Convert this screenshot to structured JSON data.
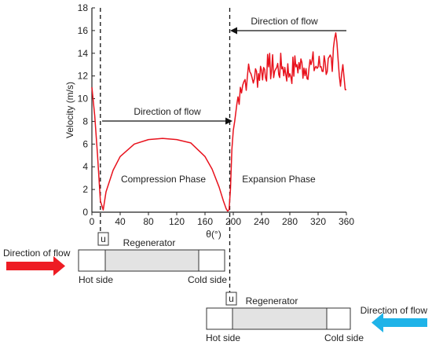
{
  "chart_data": {
    "type": "line",
    "xlabel": "θ(°)",
    "ylabel": "Velocity (m/s)",
    "xlim": [
      0,
      360
    ],
    "ylim": [
      0,
      18
    ],
    "xticks": [
      0,
      40,
      80,
      120,
      160,
      200,
      240,
      280,
      320,
      360
    ],
    "yticks": [
      0,
      2,
      4,
      6,
      8,
      10,
      12,
      14,
      16,
      18
    ],
    "grid": false,
    "series": [
      {
        "color": "#e8121d",
        "x": [
          0,
          4,
          8,
          12,
          16,
          20,
          30,
          40,
          60,
          80,
          100,
          120,
          140,
          160,
          170,
          180,
          186,
          190,
          192,
          194,
          196,
          198,
          200,
          202,
          205,
          210,
          215,
          220,
          225,
          230,
          240,
          250,
          260,
          270,
          280,
          290,
          300,
          310,
          320,
          330,
          340,
          345,
          350,
          355,
          360
        ],
        "y": [
          11.0,
          8.5,
          5.0,
          1.0,
          0.2,
          1.8,
          3.7,
          4.9,
          6.0,
          6.4,
          6.5,
          6.4,
          6.1,
          4.9,
          3.8,
          2.2,
          1.0,
          0.3,
          0.1,
          0.2,
          2.0,
          5.5,
          7.2,
          8.0,
          9.5,
          11.0,
          11.5,
          12.0,
          12.2,
          11.8,
          12.5,
          12.8,
          12.6,
          12.8,
          12.2,
          13.0,
          12.7,
          13.0,
          12.8,
          13.2,
          12.4,
          15.8,
          12.0,
          13.0,
          10.8
        ]
      }
    ],
    "markers": [
      {
        "x": 12,
        "label": "u"
      },
      {
        "x": 195,
        "label": "u"
      }
    ],
    "annotations": {
      "flow_top": "Direction of flow",
      "flow_mid": "Direction of flow",
      "compression": "Compression Phase",
      "expansion": "Expansion Phase"
    }
  },
  "regenerator_top": {
    "title": "Regenerator",
    "hot": "Hot side",
    "cold": "Cold side",
    "flow": "Direction of flow",
    "arrow_color": "#ee1c24"
  },
  "regenerator_bottom": {
    "title": "Regenerator",
    "hot": "Hot side",
    "cold": "Cold side",
    "flow": "Direction of flow",
    "arrow_color": "#1fb3e8"
  }
}
